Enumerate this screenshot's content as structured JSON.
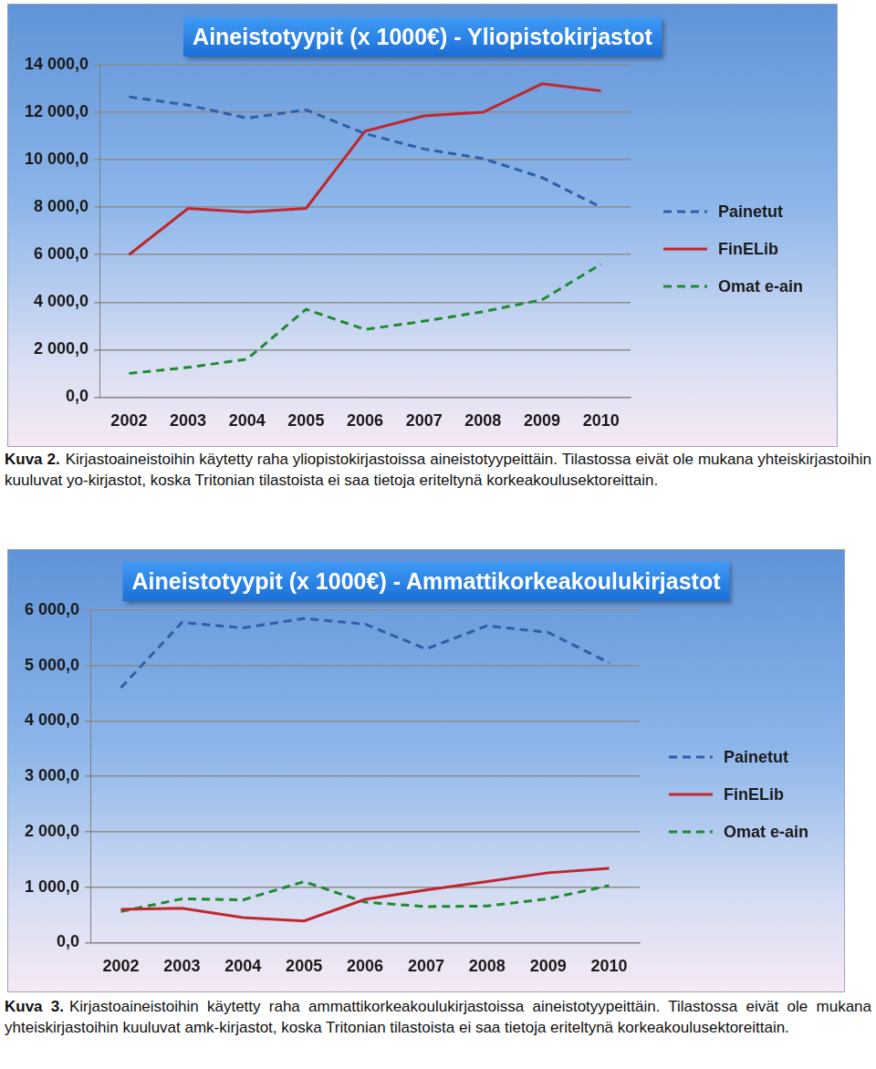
{
  "chart_data": [
    {
      "type": "line",
      "title": "Aineistotyypit (x 1000€) - Yliopistokirjastot",
      "categories": [
        "2002",
        "2003",
        "2004",
        "2005",
        "2006",
        "2007",
        "2008",
        "2009",
        "2010"
      ],
      "series": [
        {
          "name": "Painetut",
          "color": "#2f5fa6",
          "line_style": "dashed",
          "values": [
            12650,
            12300,
            11750,
            12100,
            11100,
            10450,
            10050,
            9250,
            8000
          ]
        },
        {
          "name": "FinELib",
          "color": "#c0272d",
          "line_style": "solid",
          "values": [
            6000,
            7950,
            7800,
            7950,
            11200,
            11850,
            12000,
            13200,
            12900
          ]
        },
        {
          "name": "Omat e-ain",
          "color": "#1e8a30",
          "line_style": "dashed",
          "values": [
            1000,
            1250,
            1600,
            3700,
            2850,
            3200,
            3600,
            4100,
            5600
          ]
        }
      ],
      "ylim": [
        0,
        14000
      ],
      "yticks": [
        {
          "value": 0,
          "label": "0,0"
        },
        {
          "value": 2000,
          "label": "2 000,0"
        },
        {
          "value": 4000,
          "label": "4 000,0"
        },
        {
          "value": 6000,
          "label": "6 000,0"
        },
        {
          "value": 8000,
          "label": "8 000,0"
        },
        {
          "value": 10000,
          "label": "10 000,0"
        },
        {
          "value": 12000,
          "label": "12 000,0"
        },
        {
          "value": 14000,
          "label": "14 000,0"
        }
      ],
      "grid": true,
      "legend": "right",
      "caption": {
        "label": "Kuva 2.",
        "text": "Kirjastoaineistoihin käytetty raha yliopistokirjastoissa aineistotyypeittäin. Tilastossa eivät ole mukana yhteiskirjastoihin kuuluvat yo-kirjastot, koska Tritonian tilastoista ei saa tietoja eriteltynä korkeakoulusektoreittain."
      }
    },
    {
      "type": "line",
      "title": "Aineistotyypit (x 1000€) - Ammattikorkeakoulukirjastot",
      "categories": [
        "2002",
        "2003",
        "2004",
        "2005",
        "2006",
        "2007",
        "2008",
        "2009",
        "2010"
      ],
      "series": [
        {
          "name": "Painetut",
          "color": "#2f5fa6",
          "line_style": "dashed",
          "values": [
            4600,
            5780,
            5680,
            5850,
            5750,
            5300,
            5720,
            5600,
            5050
          ]
        },
        {
          "name": "FinELib",
          "color": "#c0272d",
          "line_style": "solid",
          "values": [
            600,
            620,
            450,
            390,
            780,
            950,
            1100,
            1260,
            1340
          ]
        },
        {
          "name": "Omat e-ain",
          "color": "#1e8a30",
          "line_style": "dashed",
          "values": [
            560,
            790,
            770,
            1100,
            730,
            650,
            660,
            790,
            1030
          ]
        }
      ],
      "ylim": [
        0,
        6000
      ],
      "yticks": [
        {
          "value": 0,
          "label": "0,0"
        },
        {
          "value": 1000,
          "label": "1 000,0"
        },
        {
          "value": 2000,
          "label": "2 000,0"
        },
        {
          "value": 3000,
          "label": "3 000,0"
        },
        {
          "value": 4000,
          "label": "4 000,0"
        },
        {
          "value": 5000,
          "label": "5 000,0"
        },
        {
          "value": 6000,
          "label": "6 000,0"
        }
      ],
      "grid": true,
      "legend": "right",
      "caption": {
        "label": "Kuva 3.",
        "text": "Kirjastoaineistoihin käytetty raha ammattikorkeakoulukirjastoissa aineistotyypeittäin. Tilastossa eivät ole mukana yhteiskirjastoihin kuuluvat amk-kirjastot, koska Tritonian tilastoista ei saa tietoja eriteltynä korkeakoulusektoreittain."
      }
    }
  ]
}
